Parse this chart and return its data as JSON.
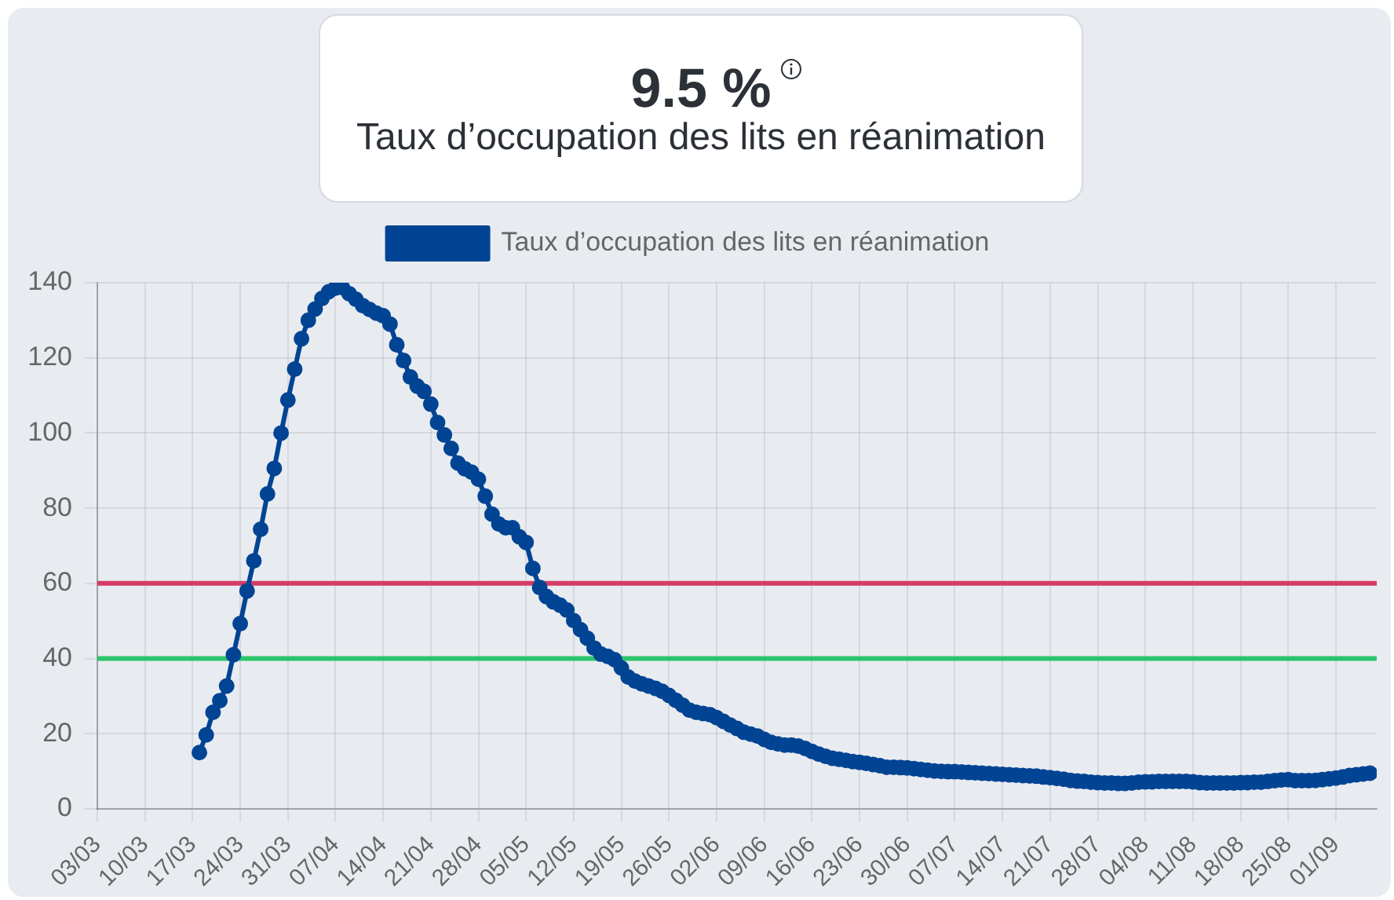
{
  "chart_data": {
    "type": "line",
    "title": "9.5 %",
    "subtitle": "Taux d’occupation des lits en réanimation",
    "x": [
      "--03-18",
      "--03-19",
      "--03-20",
      "--03-21",
      "--03-22",
      "--03-23",
      "--03-24",
      "--03-25",
      "--03-26",
      "--03-27",
      "--03-28",
      "--03-29",
      "--03-30",
      "--03-31",
      "--04-01",
      "--04-02",
      "--04-03",
      "--04-04",
      "--04-05",
      "--04-06",
      "--04-07",
      "--04-08",
      "--04-09",
      "--04-10",
      "--04-11",
      "--04-12",
      "--04-13",
      "--04-14",
      "--04-15",
      "--04-16",
      "--04-17",
      "--04-18",
      "--04-19",
      "--04-20",
      "--04-21",
      "--04-22",
      "--04-23",
      "--04-24",
      "--04-25",
      "--04-26",
      "--04-27",
      "--04-28",
      "--04-29",
      "--04-30",
      "--05-01",
      "--05-02",
      "--05-03",
      "--05-04",
      "--05-05",
      "--05-06",
      "--05-07",
      "--05-08",
      "--05-09",
      "--05-10",
      "--05-11",
      "--05-12",
      "--05-13",
      "--05-14",
      "--05-15",
      "--05-16",
      "--05-17",
      "--05-18",
      "--05-19",
      "--05-20",
      "--05-21",
      "--05-22",
      "--05-23",
      "--05-24",
      "--05-25",
      "--05-26",
      "--05-27",
      "--05-28",
      "--05-29",
      "--05-30",
      "--05-31",
      "--06-01",
      "--06-02",
      "--06-03",
      "--06-04",
      "--06-05",
      "--06-06",
      "--06-07",
      "--06-08",
      "--06-09",
      "--06-10",
      "--06-11",
      "--06-12",
      "--06-13",
      "--06-14",
      "--06-15",
      "--06-16",
      "--06-17",
      "--06-18",
      "--06-19",
      "--06-20",
      "--06-21",
      "--06-22",
      "--06-23",
      "--06-24",
      "--06-25",
      "--06-26",
      "--06-27",
      "--06-28",
      "--06-29",
      "--06-30",
      "--07-01",
      "--07-02",
      "--07-03",
      "--07-04",
      "--07-05",
      "--07-06",
      "--07-07",
      "--07-08",
      "--07-09",
      "--07-10",
      "--07-11",
      "--07-12",
      "--07-13",
      "--07-14",
      "--07-15",
      "--07-16",
      "--07-17",
      "--07-18",
      "--07-19",
      "--07-20",
      "--07-21",
      "--07-22",
      "--07-23",
      "--07-24",
      "--07-25",
      "--07-26",
      "--07-27",
      "--07-28",
      "--07-29",
      "--07-30",
      "--07-31",
      "--08-01",
      "--08-02",
      "--08-03",
      "--08-04",
      "--08-05",
      "--08-06",
      "--08-07",
      "--08-08",
      "--08-09",
      "--08-10",
      "--08-11",
      "--08-12",
      "--08-13",
      "--08-14",
      "--08-15",
      "--08-16",
      "--08-17",
      "--08-18",
      "--08-19",
      "--08-20",
      "--08-21",
      "--08-22",
      "--08-23",
      "--08-24",
      "--08-25",
      "--08-26",
      "--08-27",
      "--08-28",
      "--08-29",
      "--08-30",
      "--08-31",
      "--09-01",
      "--09-02",
      "--09-03",
      "--09-04",
      "--09-05",
      "--09-06"
    ],
    "series": [
      {
        "name": "Taux d’occupation des lits en réanimation",
        "color": "#014494",
        "values": [
          15.0,
          19.7,
          25.7,
          28.8,
          32.7,
          41.0,
          49.3,
          58.0,
          66.0,
          74.4,
          83.8,
          90.6,
          100.0,
          108.8,
          117.0,
          125.1,
          130.0,
          133.0,
          135.8,
          137.6,
          138.6,
          138.7,
          137.1,
          135.6,
          133.9,
          132.9,
          131.9,
          131.2,
          129.0,
          123.5,
          119.3,
          114.9,
          112.5,
          111.1,
          107.7,
          102.8,
          99.5,
          95.9,
          92.0,
          90.5,
          89.6,
          87.7,
          83.2,
          78.4,
          75.8,
          74.8,
          74.8,
          72.4,
          70.9,
          64.0,
          58.9,
          56.5,
          55.1,
          54.2,
          52.9,
          50.1,
          47.7,
          45.4,
          42.8,
          41.2,
          40.6,
          39.7,
          37.5,
          35.1,
          34.0,
          33.3,
          32.7,
          32.1,
          31.3,
          30.2,
          28.9,
          27.6,
          26.3,
          25.7,
          25.4,
          25.1,
          24.3,
          23.3,
          22.3,
          21.4,
          20.4,
          19.9,
          19.4,
          18.5,
          17.7,
          17.3,
          17.0,
          17.0,
          16.7,
          16.1,
          15.3,
          14.6,
          14.0,
          13.5,
          13.2,
          12.9,
          12.6,
          12.4,
          12.1,
          11.8,
          11.5,
          11.1,
          11.1,
          11.0,
          10.9,
          10.7,
          10.5,
          10.3,
          10.1,
          10.0,
          9.9,
          9.9,
          9.8,
          9.7,
          9.6,
          9.5,
          9.4,
          9.3,
          9.2,
          9.1,
          9.0,
          8.9,
          8.8,
          8.7,
          8.5,
          8.3,
          8.1,
          7.9,
          7.6,
          7.4,
          7.3,
          7.1,
          7.0,
          6.9,
          6.9,
          6.8,
          6.8,
          6.9,
          7.1,
          7.2,
          7.2,
          7.3,
          7.3,
          7.3,
          7.3,
          7.3,
          7.2,
          7.0,
          6.9,
          6.9,
          6.9,
          6.9,
          6.9,
          7.0,
          7.0,
          7.1,
          7.1,
          7.3,
          7.5,
          7.7,
          7.8,
          7.5,
          7.5,
          7.5,
          7.6,
          7.8,
          8.0,
          8.2,
          8.5,
          8.9,
          9.1,
          9.3,
          9.5
        ]
      }
    ],
    "xlim": [
      "--03-03",
      "--09-07"
    ],
    "xticks": [
      {
        "value": "--03-03",
        "label": "03/03"
      },
      {
        "value": "--03-10",
        "label": "10/03"
      },
      {
        "value": "--03-17",
        "label": "17/03"
      },
      {
        "value": "--03-24",
        "label": "24/03"
      },
      {
        "value": "--03-31",
        "label": "31/03"
      },
      {
        "value": "--04-07",
        "label": "07/04"
      },
      {
        "value": "--04-14",
        "label": "14/04"
      },
      {
        "value": "--04-21",
        "label": "21/04"
      },
      {
        "value": "--04-28",
        "label": "28/04"
      },
      {
        "value": "--05-05",
        "label": "05/05"
      },
      {
        "value": "--05-12",
        "label": "12/05"
      },
      {
        "value": "--05-19",
        "label": "19/05"
      },
      {
        "value": "--05-26",
        "label": "26/05"
      },
      {
        "value": "--06-02",
        "label": "02/06"
      },
      {
        "value": "--06-09",
        "label": "09/06"
      },
      {
        "value": "--06-16",
        "label": "16/06"
      },
      {
        "value": "--06-23",
        "label": "23/06"
      },
      {
        "value": "--06-30",
        "label": "30/06"
      },
      {
        "value": "--07-07",
        "label": "07/07"
      },
      {
        "value": "--07-14",
        "label": "14/07"
      },
      {
        "value": "--07-21",
        "label": "21/07"
      },
      {
        "value": "--07-28",
        "label": "28/07"
      },
      {
        "value": "--08-04",
        "label": "04/08"
      },
      {
        "value": "--08-11",
        "label": "11/08"
      },
      {
        "value": "--08-18",
        "label": "18/08"
      },
      {
        "value": "--08-25",
        "label": "25/08"
      },
      {
        "value": "--09-01",
        "label": "01/09"
      }
    ],
    "ylim": [
      0,
      140
    ],
    "yticks": [
      0,
      20,
      40,
      60,
      80,
      100,
      120,
      140
    ],
    "ref_lines": [
      {
        "axis": "y",
        "value": 60,
        "color": "#d63a66"
      },
      {
        "axis": "y",
        "value": 40,
        "color": "#2bc46b"
      }
    ],
    "grid": true,
    "legend": "top",
    "marker": "circle"
  }
}
